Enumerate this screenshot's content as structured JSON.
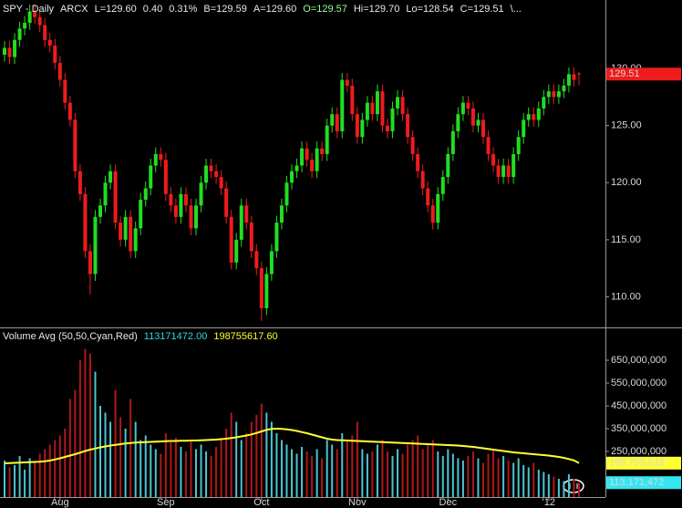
{
  "chart_data": [
    {
      "type": "candlestick",
      "header": [
        {
          "text": "SPY - Daily",
          "color": "#e8e8e8"
        },
        {
          "text": "ARCX",
          "color": "#e8e8e8"
        },
        {
          "text": "L=129.60",
          "color": "#e8e8e8"
        },
        {
          "text": "0.40",
          "color": "#e8e8e8"
        },
        {
          "text": "0.31%",
          "color": "#e8e8e8"
        },
        {
          "text": "B=129.59",
          "color": "#e8e8e8"
        },
        {
          "text": "A=129.60",
          "color": "#e8e8e8"
        },
        {
          "text": "O=129.57",
          "color": "#9cff9c"
        },
        {
          "text": "Hi=129.70",
          "color": "#e8e8e8"
        },
        {
          "text": "Lo=128.54",
          "color": "#e8e8e8"
        },
        {
          "text": "C=129.51",
          "color": "#e8e8e8"
        },
        {
          "text": "\\...",
          "color": "#e8e8e8"
        }
      ],
      "categories": [
        null,
        null,
        null,
        null,
        null,
        null,
        null,
        null,
        null,
        null,
        null,
        "Aug",
        null,
        null,
        null,
        null,
        null,
        null,
        null,
        null,
        null,
        null,
        null,
        null,
        null,
        null,
        null,
        null,
        null,
        null,
        null,
        null,
        "Sep",
        null,
        null,
        null,
        null,
        null,
        null,
        null,
        null,
        null,
        null,
        null,
        null,
        null,
        null,
        null,
        null,
        null,
        null,
        "Oct",
        null,
        null,
        null,
        null,
        null,
        null,
        null,
        null,
        null,
        null,
        null,
        null,
        null,
        null,
        null,
        null,
        null,
        null,
        "Nov",
        null,
        null,
        null,
        null,
        null,
        null,
        null,
        null,
        null,
        null,
        null,
        null,
        null,
        null,
        null,
        null,
        null,
        "Dec",
        null,
        null,
        null,
        null,
        null,
        null,
        null,
        null,
        null,
        null,
        null,
        null,
        null,
        null,
        null,
        null,
        null,
        null,
        null,
        "'12",
        null,
        null,
        null,
        null,
        null,
        null
      ],
      "open": [
        131.2,
        131.8,
        131,
        132.5,
        133.5,
        134,
        135,
        134.5,
        133.8,
        132.5,
        132,
        130.5,
        129,
        127,
        125.5,
        121,
        119,
        114,
        112,
        117,
        118,
        120,
        121,
        116.5,
        115,
        117,
        114,
        116,
        118.5,
        119.5,
        121.5,
        122.5,
        122,
        119,
        118,
        117,
        119,
        118,
        116,
        118,
        120,
        121.5,
        121,
        120.5,
        119.5,
        117,
        113,
        115,
        118,
        116.5,
        114,
        112.5,
        109,
        112,
        114,
        116.5,
        118,
        120,
        121,
        121.5,
        123,
        122,
        121,
        123,
        122.5,
        125,
        126,
        124.5,
        129,
        128.5,
        126,
        124,
        125.5,
        127,
        126,
        128,
        125,
        124.5,
        126.5,
        127.5,
        126,
        124,
        122.5,
        121,
        119.5,
        118,
        116.5,
        119,
        120.5,
        122.5,
        124.5,
        126,
        127,
        126.5,
        125,
        125.5,
        124,
        122.5,
        121.5,
        120.5,
        121.5,
        120.5,
        122.5,
        124,
        125.5,
        126,
        125.5,
        126.5,
        127.5,
        128,
        127.5,
        128,
        128.5,
        129.5,
        129.57
      ],
      "high": [
        132.4,
        132.4,
        133.1,
        134.1,
        134.6,
        135.6,
        135.6,
        135.1,
        134.4,
        133.1,
        132.6,
        131.1,
        129.6,
        127.6,
        126.1,
        121.6,
        119.6,
        114.6,
        117.6,
        118.6,
        120.6,
        121.6,
        121.6,
        117.1,
        117.6,
        117.6,
        116.6,
        119.1,
        120.1,
        122.1,
        123.1,
        123.1,
        122.6,
        119.6,
        118.6,
        119.6,
        119.6,
        118.6,
        118.6,
        120.6,
        122.1,
        122.1,
        121.6,
        121.1,
        120.1,
        117.6,
        115.6,
        118.6,
        118.6,
        117.1,
        114.6,
        113.1,
        112.6,
        114.6,
        117.1,
        118.6,
        120.6,
        121.6,
        122.1,
        123.6,
        123.6,
        122.6,
        123.6,
        123.6,
        125.6,
        126.6,
        126.6,
        129.6,
        129.6,
        129.1,
        126.6,
        126.1,
        127.6,
        127.6,
        128.6,
        128.6,
        125.6,
        127.1,
        128.1,
        128.1,
        126.6,
        124.6,
        123.1,
        121.6,
        120.1,
        118.6,
        119.6,
        121.1,
        123.1,
        125.1,
        126.6,
        127.6,
        127.6,
        127.1,
        126.1,
        126.1,
        124.6,
        123.1,
        122.1,
        122.1,
        122.1,
        123.1,
        124.6,
        126.1,
        126.6,
        126.6,
        127.1,
        128.1,
        128.6,
        128.6,
        128.6,
        129.1,
        130.1,
        130.1,
        129.7
      ],
      "low": [
        130.6,
        130.4,
        130.4,
        131.9,
        132.9,
        133.4,
        133.9,
        133.2,
        131.9,
        131.4,
        129.9,
        128.4,
        126.4,
        124.9,
        120.4,
        118.4,
        113.4,
        110.2,
        111.4,
        116.4,
        117.4,
        119.4,
        115.9,
        114.4,
        114.4,
        113.4,
        113.4,
        115.4,
        117.9,
        118.9,
        120.9,
        121.4,
        118.4,
        117.4,
        116.4,
        116.4,
        117.4,
        115.4,
        115.4,
        117.4,
        119.4,
        120.4,
        119.9,
        118.9,
        116.4,
        112.4,
        112.4,
        114.4,
        115.9,
        113.4,
        111.9,
        107.9,
        108.4,
        111.4,
        113.4,
        115.9,
        117.4,
        119.4,
        120.4,
        120.9,
        121.4,
        120.4,
        120.4,
        121.9,
        121.9,
        124.4,
        123.9,
        123.9,
        127.9,
        125.4,
        123.4,
        123.4,
        124.9,
        125.4,
        125.4,
        124.4,
        123.9,
        123.9,
        125.9,
        125.4,
        123.4,
        121.9,
        120.4,
        118.9,
        117.4,
        115.9,
        115.9,
        118.4,
        119.9,
        121.9,
        123.9,
        125.4,
        125.9,
        124.4,
        124.4,
        123.4,
        121.9,
        120.9,
        119.9,
        119.9,
        119.9,
        119.9,
        121.9,
        123.4,
        124.9,
        124.9,
        124.9,
        125.9,
        126.9,
        126.9,
        126.9,
        127.4,
        127.9,
        128.4,
        128.54
      ],
      "close": [
        131.8,
        131,
        132.5,
        133.5,
        134,
        135,
        134.5,
        133.8,
        132.5,
        132,
        130.5,
        129,
        127,
        125.5,
        121,
        119,
        114,
        112,
        117,
        118,
        120,
        121,
        116.5,
        115,
        117,
        114,
        116,
        118.5,
        119.5,
        121.5,
        122.5,
        122,
        119,
        118,
        117,
        119,
        118,
        116,
        118,
        120,
        121.5,
        121,
        120.5,
        119.5,
        117,
        113,
        115,
        118,
        116.5,
        114,
        112.5,
        109,
        112,
        114,
        116.5,
        118,
        120,
        121,
        121.5,
        123,
        122,
        121,
        123,
        122.5,
        125,
        126,
        124.5,
        129,
        128.5,
        126,
        124,
        125.5,
        127,
        126,
        128,
        125,
        124.5,
        126.5,
        127.5,
        126,
        124,
        122.5,
        121,
        119.5,
        118,
        116.5,
        119,
        120.5,
        122.5,
        124.5,
        126,
        127,
        126.5,
        125,
        125.5,
        124,
        122.5,
        121.5,
        120.5,
        121.5,
        120.5,
        122.5,
        124,
        125.5,
        126,
        125.5,
        126.5,
        127.5,
        128,
        127.5,
        128,
        128.5,
        129.5,
        129,
        129.51
      ],
      "up_color": "#22dd22",
      "down_color": "#ee1c1c",
      "ylim": [
        107.4,
        136
      ],
      "yticks": [
        {
          "value": 110,
          "label": "110.00"
        },
        {
          "value": 115,
          "label": "115.00"
        },
        {
          "value": 120,
          "label": "120.00"
        },
        {
          "value": 125,
          "label": "125.00"
        },
        {
          "value": 130,
          "label": "130.00"
        }
      ],
      "last_labels": [
        {
          "value": 129.51,
          "label": "129.51",
          "color": "#ee1c1c",
          "text_color": "#e8e8e8"
        }
      ]
    },
    {
      "type": "bar",
      "legend": [
        {
          "text": "Volume Avg (50,50,Cyan,Red)",
          "color": "#e8e8e8"
        },
        {
          "text": "113171472.00",
          "color": "#33d6e6"
        },
        {
          "text": "198755617.60",
          "color": "#ffff33"
        }
      ],
      "values": [
        210000000.0,
        180000000.0,
        190000000.0,
        230000000.0,
        170000000.0,
        220000000.0,
        200000000.0,
        240000000.0,
        260000000.0,
        280000000.0,
        300000000.0,
        320000000.0,
        350000000.0,
        480000000.0,
        520000000.0,
        650000000.0,
        700000000.0,
        680000000.0,
        600000000.0,
        450000000.0,
        420000000.0,
        380000000.0,
        520000000.0,
        400000000.0,
        350000000.0,
        480000000.0,
        380000000.0,
        300000000.0,
        320000000.0,
        280000000.0,
        260000000.0,
        240000000.0,
        330000000.0,
        290000000.0,
        310000000.0,
        270000000.0,
        250000000.0,
        300000000.0,
        260000000.0,
        280000000.0,
        250000000.0,
        230000000.0,
        270000000.0,
        300000000.0,
        350000000.0,
        420000000.0,
        380000000.0,
        300000000.0,
        330000000.0,
        380000000.0,
        410000000.0,
        460000000.0,
        420000000.0,
        380000000.0,
        330000000.0,
        300000000.0,
        280000000.0,
        260000000.0,
        240000000.0,
        270000000.0,
        250000000.0,
        230000000.0,
        260000000.0,
        220000000.0,
        300000000.0,
        280000000.0,
        260000000.0,
        330000000.0,
        300000000.0,
        320000000.0,
        380000000.0,
        260000000.0,
        240000000.0,
        250000000.0,
        280000000.0,
        300000000.0,
        250000000.0,
        230000000.0,
        260000000.0,
        240000000.0,
        280000000.0,
        300000000.0,
        320000000.0,
        260000000.0,
        280000000.0,
        300000000.0,
        250000000.0,
        230000000.0,
        260000000.0,
        240000000.0,
        220000000.0,
        210000000.0,
        230000000.0,
        250000000.0,
        220000000.0,
        200000000.0,
        240000000.0,
        260000000.0,
        220000000.0,
        230000000.0,
        210000000.0,
        200000000.0,
        220000000.0,
        190000000.0,
        180000000.0,
        200000000.0,
        170000000.0,
        160000000.0,
        150000000.0,
        140000000.0,
        130000000.0,
        120000000.0,
        150000000.0,
        130000000.0,
        113171472
      ],
      "avg_values": [
        198000000.0,
        199000000.0,
        200000000.0,
        201000000.0,
        202000000.0,
        203000000.0,
        204000000.0,
        205000000.0,
        207000000.0,
        210000000.0,
        215000000.0,
        220000000.0,
        226000000.0,
        232000000.0,
        238000000.0,
        245000000.0,
        252000000.0,
        258000000.0,
        263000000.0,
        268000000.0,
        272000000.0,
        276000000.0,
        279000000.0,
        282000000.0,
        285000000.0,
        287000000.0,
        289000000.0,
        290000000.0,
        291000000.0,
        292000000.0,
        293000000.0,
        294000000.0,
        295000000.0,
        296000000.0,
        296000000.0,
        297000000.0,
        297000000.0,
        298000000.0,
        298000000.0,
        299000000.0,
        300000000.0,
        301000000.0,
        302000000.0,
        304000000.0,
        306000000.0,
        309000000.0,
        312000000.0,
        316000000.0,
        320000000.0,
        325000000.0,
        331000000.0,
        338000000.0,
        345000000.0,
        349000000.0,
        350000000.0,
        349000000.0,
        347000000.0,
        344000000.0,
        340000000.0,
        335000000.0,
        330000000.0,
        324000000.0,
        318000000.0,
        312000000.0,
        306000000.0,
        302000000.0,
        300000000.0,
        299000000.0,
        298000000.0,
        297000000.0,
        296000000.0,
        295000000.0,
        294000000.0,
        293000000.0,
        292000000.0,
        291000000.0,
        290000000.0,
        289000000.0,
        288000000.0,
        287000000.0,
        286000000.0,
        285000000.0,
        284000000.0,
        283000000.0,
        282000000.0,
        281000000.0,
        280000000.0,
        279000000.0,
        278000000.0,
        277000000.0,
        276000000.0,
        274000000.0,
        272000000.0,
        270000000.0,
        267000000.0,
        264000000.0,
        261000000.0,
        258000000.0,
        255000000.0,
        252000000.0,
        249000000.0,
        246000000.0,
        244000000.0,
        242000000.0,
        240000000.0,
        238000000.0,
        236000000.0,
        234000000.0,
        232000000.0,
        229000000.0,
        226000000.0,
        222000000.0,
        217000000.0,
        211000000.0,
        198755617.6
      ],
      "up_color": "#4cc4d2",
      "down_color": "#b01818",
      "avg_color": "#ffff33",
      "ylim": [
        50000000.0,
        790000000.0
      ],
      "yticks": [
        {
          "value": 250000000.0,
          "label": "250,000,000"
        },
        {
          "value": 350000000.0,
          "label": "350,000,000"
        },
        {
          "value": 450000000.0,
          "label": "450,000,000"
        },
        {
          "value": 550000000.0,
          "label": "550,000,000"
        },
        {
          "value": 650000000.0,
          "label": "650,000,000"
        }
      ],
      "last_labels": [
        {
          "value": 198755617.6,
          "label": "198,755,618",
          "color": "#ffff33",
          "text_color": "#000000"
        },
        {
          "value": 113171472,
          "label": "113,171,472",
          "color": "#33e6f0",
          "text_color": "#000000"
        }
      ]
    }
  ]
}
